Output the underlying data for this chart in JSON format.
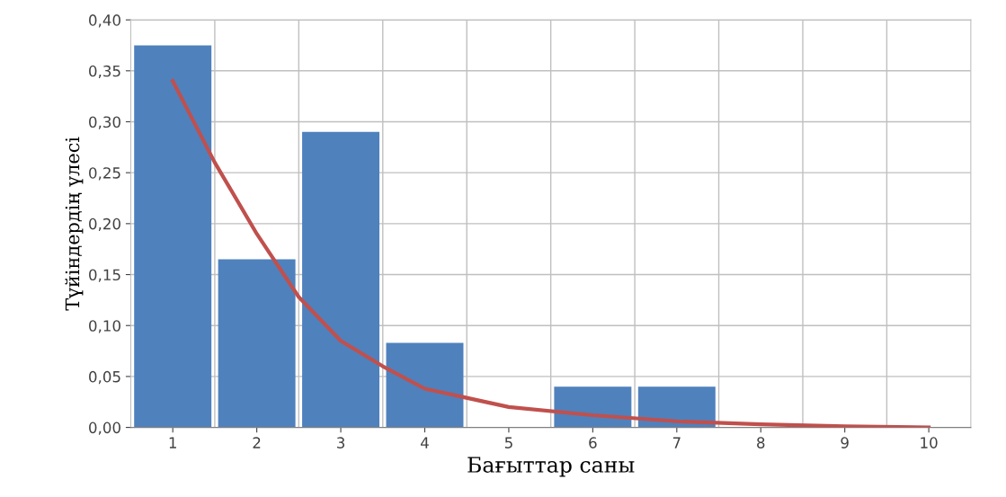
{
  "chart_data": {
    "type": "bar",
    "xlabel": "Бағыттар саны",
    "ylabel": "Түйіндердің үлесі",
    "x": [
      1,
      2,
      3,
      4,
      5,
      6,
      7,
      8,
      9,
      10
    ],
    "xlim": [
      0.5,
      10.5
    ],
    "xticks": [
      1,
      2,
      3,
      4,
      5,
      6,
      7,
      8,
      9,
      10
    ],
    "ylim": [
      0,
      0.4
    ],
    "yticks": [
      {
        "value": 0,
        "label": "0,00"
      },
      {
        "value": 0.05,
        "label": "0,05"
      },
      {
        "value": 0.1,
        "label": "0,10"
      },
      {
        "value": 0.15,
        "label": "0,15"
      },
      {
        "value": 0.2,
        "label": "0,20"
      },
      {
        "value": 0.25,
        "label": "0,25"
      },
      {
        "value": 0.3,
        "label": "0,30"
      },
      {
        "value": 0.35,
        "label": "0,35"
      },
      {
        "value": 0.4,
        "label": "0,40"
      }
    ],
    "grid": true,
    "series": [
      {
        "color": "#4f81bd",
        "values": [
          0.375,
          0.165,
          0.29,
          0.083,
          0,
          0.04,
          0.04,
          0,
          0,
          0
        ]
      },
      {
        "type": "line",
        "color": "#c0504d",
        "x": [
          1,
          1.5,
          2,
          2.5,
          3,
          3.5,
          4,
          5,
          6,
          7,
          8,
          9,
          10
        ],
        "values": [
          0.34,
          0.26,
          0.19,
          0.128,
          0.085,
          0.06,
          0.038,
          0.02,
          0.012,
          0.006,
          0.003,
          0.001,
          0.0
        ]
      }
    ]
  }
}
